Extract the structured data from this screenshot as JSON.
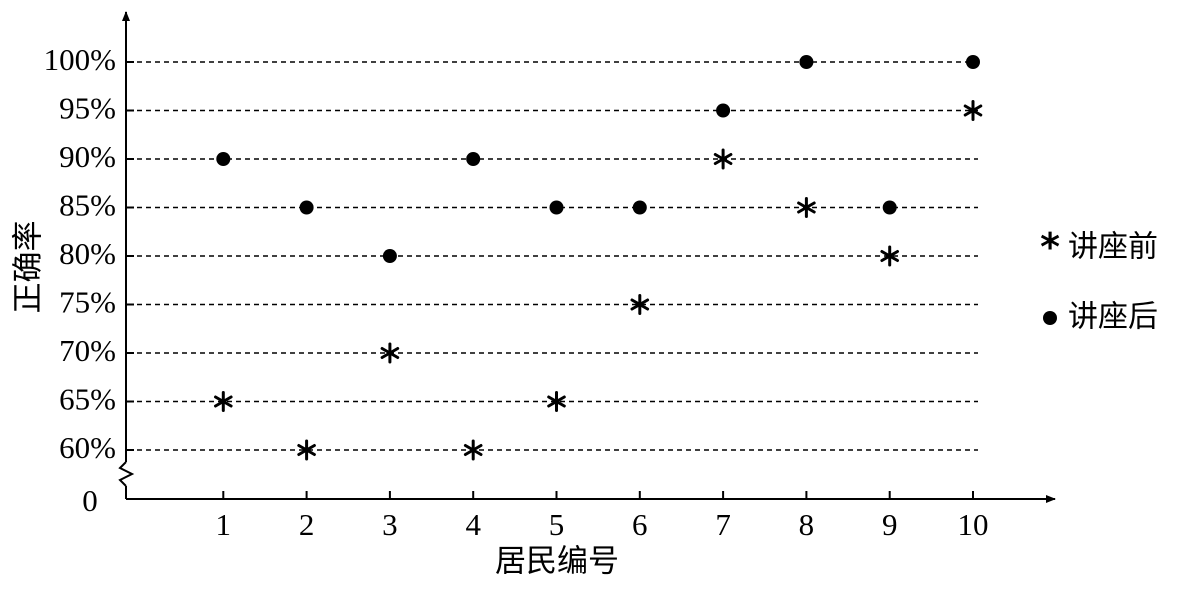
{
  "chart_data": {
    "type": "scatter",
    "title": "",
    "xlabel": "居民编号",
    "ylabel": "正确率",
    "x_ticks": [
      "1",
      "2",
      "3",
      "4",
      "5",
      "6",
      "7",
      "8",
      "9",
      "10"
    ],
    "x_origin_label": "0",
    "y_ticks": [
      "60%",
      "65%",
      "70%",
      "75%",
      "80%",
      "85%",
      "90%",
      "95%",
      "100%"
    ],
    "y_tick_values": [
      60,
      65,
      70,
      75,
      80,
      85,
      90,
      95,
      100
    ],
    "ylim": [
      60,
      100
    ],
    "xlim": [
      0,
      10
    ],
    "grid": "horizontal dashed",
    "axis_break": true,
    "legend_position": "right",
    "series": [
      {
        "name": "讲座前",
        "marker": "asterisk",
        "symbol": "*",
        "x": [
          1,
          2,
          3,
          4,
          5,
          6,
          7,
          8,
          9,
          10
        ],
        "values": [
          65,
          60,
          70,
          60,
          65,
          75,
          90,
          85,
          80,
          95
        ]
      },
      {
        "name": "讲座后",
        "marker": "dot",
        "symbol": "●",
        "x": [
          1,
          2,
          3,
          4,
          5,
          6,
          7,
          8,
          9,
          10
        ],
        "values": [
          90,
          85,
          80,
          90,
          85,
          85,
          95,
          100,
          85,
          100
        ]
      }
    ]
  }
}
